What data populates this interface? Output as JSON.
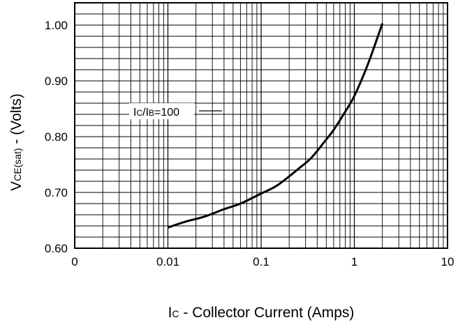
{
  "chart_data": {
    "type": "line",
    "xscale": "log",
    "xlim": [
      0.001,
      10
    ],
    "ylim": [
      0.6,
      1.04
    ],
    "x_tick_labels": [
      "0",
      "0.01",
      "0.1",
      "1",
      "10"
    ],
    "y_tick_labels": [
      "0.60",
      "0.70",
      "0.80",
      "0.90",
      "1.00"
    ],
    "y_ticks": [
      0.6,
      0.7,
      0.8,
      0.9,
      1.0
    ],
    "xlabel_main": "I",
    "xlabel_sub": "C",
    "xlabel_rest": " - Collector Current (Amps)",
    "ylabel_main": "V",
    "ylabel_sub": "CE(sat)",
    "ylabel_rest": " - (Volts)",
    "annotation": {
      "p1": "I",
      "s1": "C",
      "p2": "/I",
      "s2": "B",
      "p3": "=100"
    },
    "grid": true,
    "series": [
      {
        "x": [
          0.01,
          0.015,
          0.025,
          0.04,
          0.06,
          0.1,
          0.15,
          0.25,
          0.35,
          0.5,
          0.6,
          0.8,
          1.0,
          1.4,
          2.0
        ],
        "y": [
          0.637,
          0.647,
          0.657,
          0.67,
          0.68,
          0.698,
          0.713,
          0.742,
          0.763,
          0.795,
          0.812,
          0.845,
          0.873,
          0.93,
          1.003
        ]
      }
    ]
  }
}
